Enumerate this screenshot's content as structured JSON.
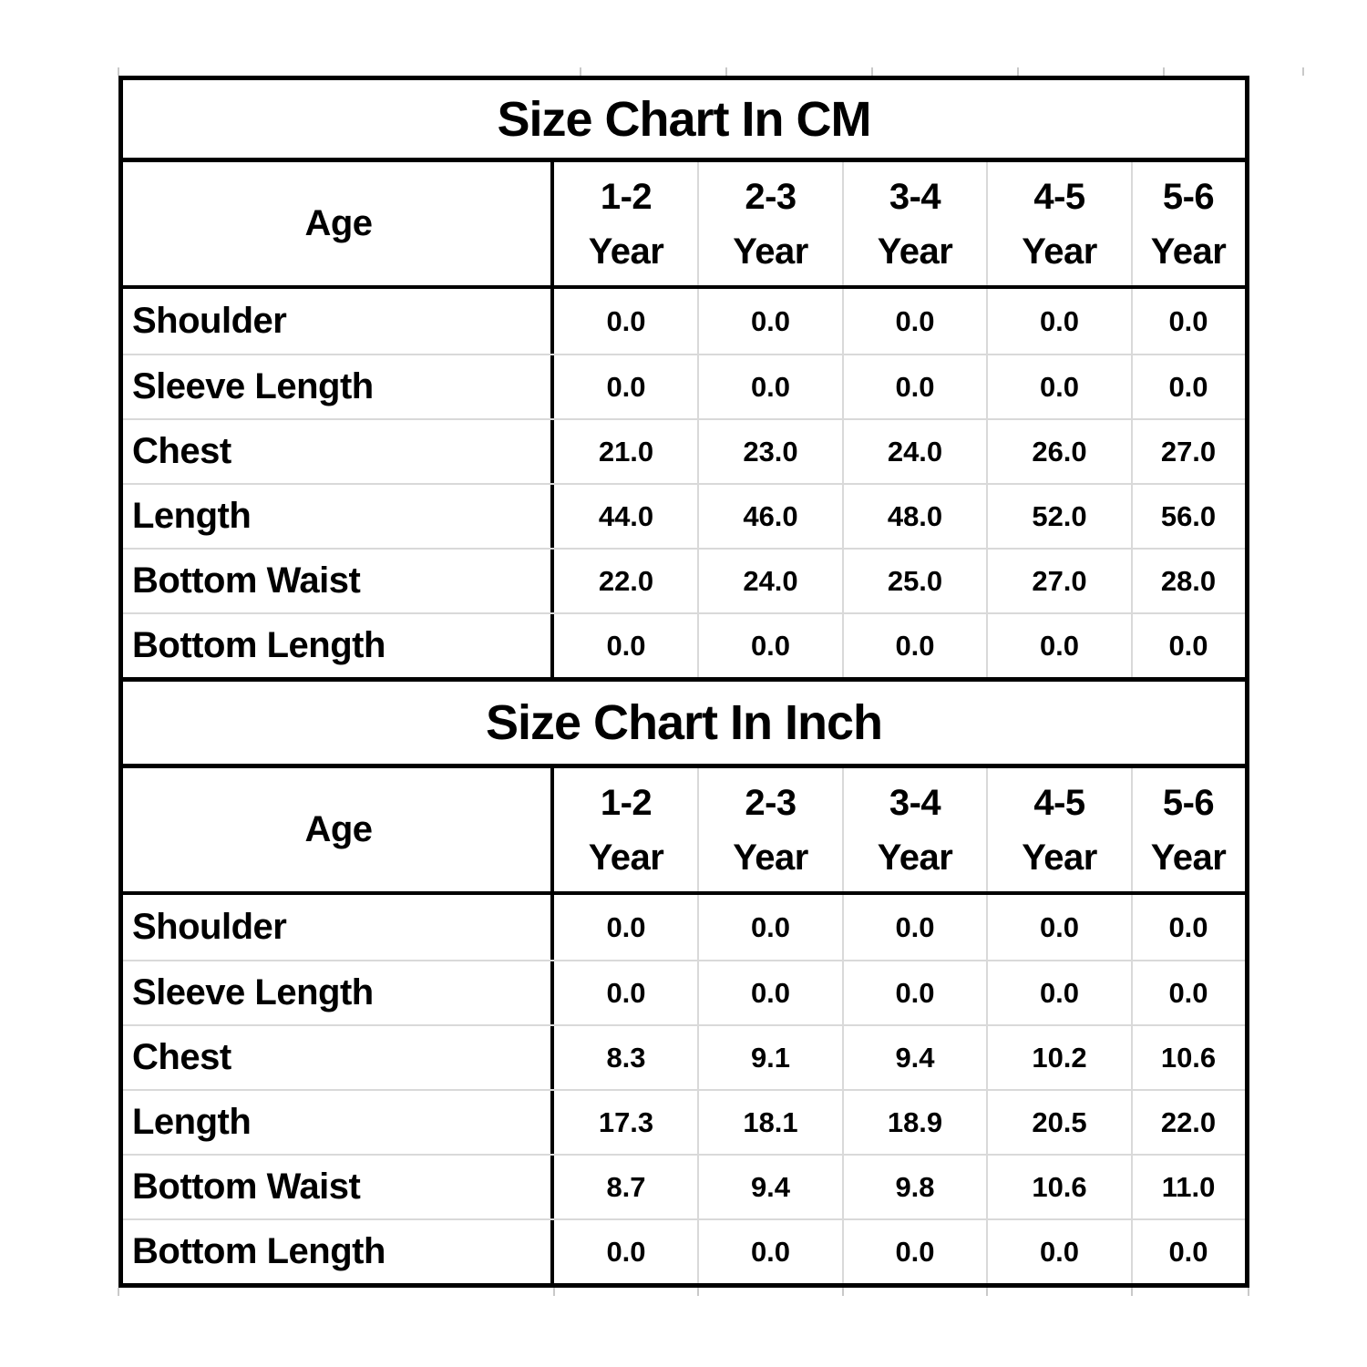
{
  "colors": {
    "background": "#ffffff",
    "text": "#000000",
    "border": "#000000",
    "grid": "#d9d9d9"
  },
  "chart_data": [
    {
      "type": "table",
      "title": "Size Chart In CM",
      "age_label": "Age",
      "columns": [
        {
          "range": "1-2",
          "unit": "Year"
        },
        {
          "range": "2-3",
          "unit": "Year"
        },
        {
          "range": "3-4",
          "unit": "Year"
        },
        {
          "range": "4-5",
          "unit": "Year"
        },
        {
          "range": "5-6",
          "unit": "Year"
        }
      ],
      "rows": [
        {
          "label": "Shoulder",
          "values": [
            "0.0",
            "0.0",
            "0.0",
            "0.0",
            "0.0"
          ]
        },
        {
          "label": "Sleeve Length",
          "values": [
            "0.0",
            "0.0",
            "0.0",
            "0.0",
            "0.0"
          ]
        },
        {
          "label": "Chest",
          "values": [
            "21.0",
            "23.0",
            "24.0",
            "26.0",
            "27.0"
          ]
        },
        {
          "label": "Length",
          "values": [
            "44.0",
            "46.0",
            "48.0",
            "52.0",
            "56.0"
          ]
        },
        {
          "label": "Bottom Waist",
          "values": [
            "22.0",
            "24.0",
            "25.0",
            "27.0",
            "28.0"
          ]
        },
        {
          "label": "Bottom Length",
          "values": [
            "0.0",
            "0.0",
            "0.0",
            "0.0",
            "0.0"
          ]
        }
      ]
    },
    {
      "type": "table",
      "title": "Size Chart In Inch",
      "age_label": "Age",
      "columns": [
        {
          "range": "1-2",
          "unit": "Year"
        },
        {
          "range": "2-3",
          "unit": "Year"
        },
        {
          "range": "3-4",
          "unit": "Year"
        },
        {
          "range": "4-5",
          "unit": "Year"
        },
        {
          "range": "5-6",
          "unit": "Year"
        }
      ],
      "rows": [
        {
          "label": "Shoulder",
          "values": [
            "0.0",
            "0.0",
            "0.0",
            "0.0",
            "0.0"
          ]
        },
        {
          "label": "Sleeve Length",
          "values": [
            "0.0",
            "0.0",
            "0.0",
            "0.0",
            "0.0"
          ]
        },
        {
          "label": "Chest",
          "values": [
            "8.3",
            "9.1",
            "9.4",
            "10.2",
            "10.6"
          ]
        },
        {
          "label": "Length",
          "values": [
            "17.3",
            "18.1",
            "18.9",
            "20.5",
            "22.0"
          ]
        },
        {
          "label": "Bottom Waist",
          "values": [
            "8.7",
            "9.4",
            "9.8",
            "10.6",
            "11.0"
          ]
        },
        {
          "label": "Bottom Length",
          "values": [
            "0.0",
            "0.0",
            "0.0",
            "0.0",
            "0.0"
          ]
        }
      ]
    }
  ]
}
